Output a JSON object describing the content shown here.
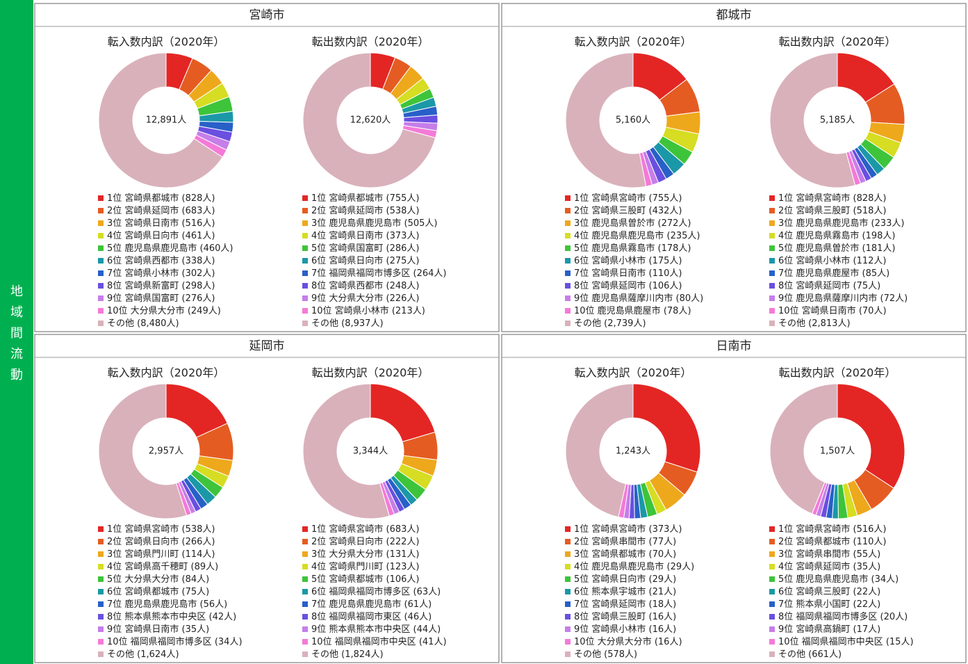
{
  "side_label": "地域間流動",
  "colors": [
    "#e32624",
    "#e55c22",
    "#eea81c",
    "#d6dd22",
    "#3ec43a",
    "#1b98a8",
    "#2860c8",
    "#6a4fe0",
    "#c67ee8",
    "#f47ad8",
    "#d9b1bb"
  ],
  "panels": [
    {
      "title": "宮崎市"
    },
    {
      "title": "都城市"
    },
    {
      "title": "延岡市"
    },
    {
      "title": "日南市"
    }
  ],
  "chart_data": [
    {
      "type": "donut",
      "title": "転入数内訳（2020年）",
      "center_label": "12,891人",
      "categories": [
        "1位 宮崎県都城市",
        "2位 宮崎県延岡市",
        "3位 宮崎県日南市",
        "4位 宮崎県日向市",
        "5位 鹿児島県鹿児島市",
        "6位 宮崎県西都市",
        "7位 宮崎県小林市",
        "8位 宮崎県新富町",
        "9位 宮崎県国富町",
        "10位 大分県大分市",
        "その他"
      ],
      "values": [
        828,
        683,
        516,
        461,
        460,
        338,
        302,
        298,
        276,
        249,
        8480
      ],
      "value_labels": [
        "(828人)",
        "(683人)",
        "(516人)",
        "(461人)",
        "(460人)",
        "(338人)",
        "(302人)",
        "(298人)",
        "(276人)",
        "(249人)",
        "(8,480人)"
      ]
    },
    {
      "type": "donut",
      "title": "転出数内訳（2020年）",
      "center_label": "12,620人",
      "categories": [
        "1位 宮崎県都城市",
        "2位 宮崎県延岡市",
        "3位 鹿児島県鹿児島市",
        "4位 宮崎県日南市",
        "5位 宮崎県国富町",
        "6位 宮崎県日向市",
        "7位 福岡県福岡市博多区",
        "8位 宮崎県西都市",
        "9位 大分県大分市",
        "10位 宮崎県小林市",
        "その他"
      ],
      "values": [
        755,
        538,
        505,
        373,
        286,
        275,
        264,
        248,
        226,
        213,
        8937
      ],
      "value_labels": [
        "(755人)",
        "(538人)",
        "(505人)",
        "(373人)",
        "(286人)",
        "(275人)",
        "(264人)",
        "(248人)",
        "(226人)",
        "(213人)",
        "(8,937人)"
      ]
    },
    {
      "type": "donut",
      "title": "転入数内訳（2020年）",
      "center_label": "5,160人",
      "categories": [
        "1位 宮崎県宮崎市",
        "2位 宮崎県三股町",
        "3位 鹿児島県曽於市",
        "4位 鹿児島県鹿児島市",
        "5位 鹿児島県霧島市",
        "6位 宮崎県小林市",
        "7位 宮崎県日南市",
        "8位 宮崎県延岡市",
        "9位 鹿児島県薩摩川内市",
        "10位 鹿児島県鹿屋市",
        "その他"
      ],
      "values": [
        755,
        432,
        272,
        235,
        178,
        175,
        110,
        106,
        80,
        78,
        2739
      ],
      "value_labels": [
        "(755人)",
        "(432人)",
        "(272人)",
        "(235人)",
        "(178人)",
        "(175人)",
        "(110人)",
        "(106人)",
        "(80人)",
        "(78人)",
        "(2,739人)"
      ]
    },
    {
      "type": "donut",
      "title": "転出数内訳（2020年）",
      "center_label": "5,185人",
      "categories": [
        "1位 宮崎県宮崎市",
        "2位 宮崎県三股町",
        "3位 鹿児島県鹿児島市",
        "4位 鹿児島県霧島市",
        "5位 鹿児島県曽於市",
        "6位 宮崎県小林市",
        "7位 鹿児島県鹿屋市",
        "8位 宮崎県延岡市",
        "9位 鹿児島県薩摩川内市",
        "10位 宮崎県日南市",
        "その他"
      ],
      "values": [
        828,
        518,
        233,
        198,
        181,
        112,
        85,
        75,
        72,
        70,
        2813
      ],
      "value_labels": [
        "(828人)",
        "(518人)",
        "(233人)",
        "(198人)",
        "(181人)",
        "(112人)",
        "(85人)",
        "(75人)",
        "(72人)",
        "(70人)",
        "(2,813人)"
      ]
    },
    {
      "type": "donut",
      "title": "転入数内訳（2020年）",
      "center_label": "2,957人",
      "categories": [
        "1位 宮崎県宮崎市",
        "2位 宮崎県日向市",
        "3位 宮崎県門川町",
        "4位 宮崎県高千穂町",
        "5位 大分県大分市",
        "6位 宮崎県都城市",
        "7位 鹿児島県鹿児島市",
        "8位 熊本県熊本市中央区",
        "9位 宮崎県日南市",
        "10位 福岡県福岡市博多区",
        "その他"
      ],
      "values": [
        538,
        266,
        114,
        89,
        84,
        75,
        56,
        42,
        35,
        34,
        1624
      ],
      "value_labels": [
        "(538人)",
        "(266人)",
        "(114人)",
        "(89人)",
        "(84人)",
        "(75人)",
        "(56人)",
        "(42人)",
        "(35人)",
        "(34人)",
        "(1,624人)"
      ]
    },
    {
      "type": "donut",
      "title": "転出数内訳（2020年）",
      "center_label": "3,344人",
      "categories": [
        "1位 宮崎県宮崎市",
        "2位 宮崎県日向市",
        "3位 大分県大分市",
        "4位 宮崎県門川町",
        "5位 宮崎県都城市",
        "6位 福岡県福岡市博多区",
        "7位 鹿児島県鹿児島市",
        "8位 福岡県福岡市東区",
        "9位 熊本県熊本市中央区",
        "10位 福岡県福岡市中央区",
        "その他"
      ],
      "values": [
        683,
        222,
        131,
        123,
        106,
        63,
        61,
        46,
        44,
        41,
        1824
      ],
      "value_labels": [
        "(683人)",
        "(222人)",
        "(131人)",
        "(123人)",
        "(106人)",
        "(63人)",
        "(61人)",
        "(46人)",
        "(44人)",
        "(41人)",
        "(1,824人)"
      ]
    },
    {
      "type": "donut",
      "title": "転入数内訳（2020年）",
      "center_label": "1,243人",
      "categories": [
        "1位 宮崎県宮崎市",
        "2位 宮崎県串間市",
        "3位 宮崎県都城市",
        "4位 鹿児島県鹿児島市",
        "5位 宮崎県日向市",
        "6位 熊本県宇城市",
        "7位 宮崎県延岡市",
        "8位 宮崎県三股町",
        "9位 宮崎県小林市",
        "10位 大分県大分市",
        "その他"
      ],
      "values": [
        373,
        77,
        70,
        29,
        29,
        21,
        18,
        16,
        16,
        16,
        578
      ],
      "value_labels": [
        "(373人)",
        "(77人)",
        "(70人)",
        "(29人)",
        "(29人)",
        "(21人)",
        "(18人)",
        "(16人)",
        "(16人)",
        "(16人)",
        "(578人)"
      ]
    },
    {
      "type": "donut",
      "title": "転出数内訳（2020年）",
      "center_label": "1,507人",
      "categories": [
        "1位 宮崎県宮崎市",
        "2位 宮崎県都城市",
        "3位 宮崎県串間市",
        "4位 宮崎県延岡市",
        "5位 鹿児島県鹿児島市",
        "6位 宮崎県三股町",
        "7位 熊本県小国町",
        "8位 福岡県福岡市博多区",
        "9位 宮崎県高鍋町",
        "10位 福岡県福岡市中央区",
        "その他"
      ],
      "values": [
        516,
        110,
        55,
        35,
        34,
        22,
        22,
        20,
        17,
        15,
        661
      ],
      "value_labels": [
        "(516人)",
        "(110人)",
        "(55人)",
        "(35人)",
        "(34人)",
        "(22人)",
        "(22人)",
        "(20人)",
        "(17人)",
        "(15人)",
        "(661人)"
      ]
    }
  ]
}
